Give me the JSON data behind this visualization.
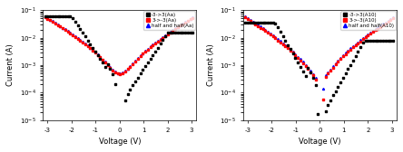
{
  "left": {
    "legend": [
      "-3->3(Aa)",
      "3->-3(Aa)",
      "half and half(Aa)"
    ],
    "legend_colors": [
      "black",
      "red",
      "blue"
    ],
    "legend_markers": [
      "s",
      "s",
      "^"
    ],
    "ylabel": "Current (A)",
    "xlabel": "Voltage (V)",
    "xlim": [
      -3.2,
      3.2
    ],
    "ylim_log": [
      -5,
      -1
    ],
    "xticks": [
      -3,
      -2,
      -1,
      0,
      1,
      2,
      3
    ]
  },
  "right": {
    "legend": [
      "-3->3(A10)",
      "3->-3(A10)",
      "half and half(A10)"
    ],
    "legend_colors": [
      "black",
      "red",
      "blue"
    ],
    "legend_markers": [
      "s",
      "s",
      "^"
    ],
    "ylabel": "Current (A)",
    "xlabel": "Voltage (V)",
    "xlim": [
      -3.2,
      3.2
    ],
    "ylim_log": [
      -5,
      -1
    ],
    "xticks": [
      -3,
      -2,
      -1,
      0,
      1,
      2,
      3
    ]
  },
  "fig_bg": "#ffffff"
}
